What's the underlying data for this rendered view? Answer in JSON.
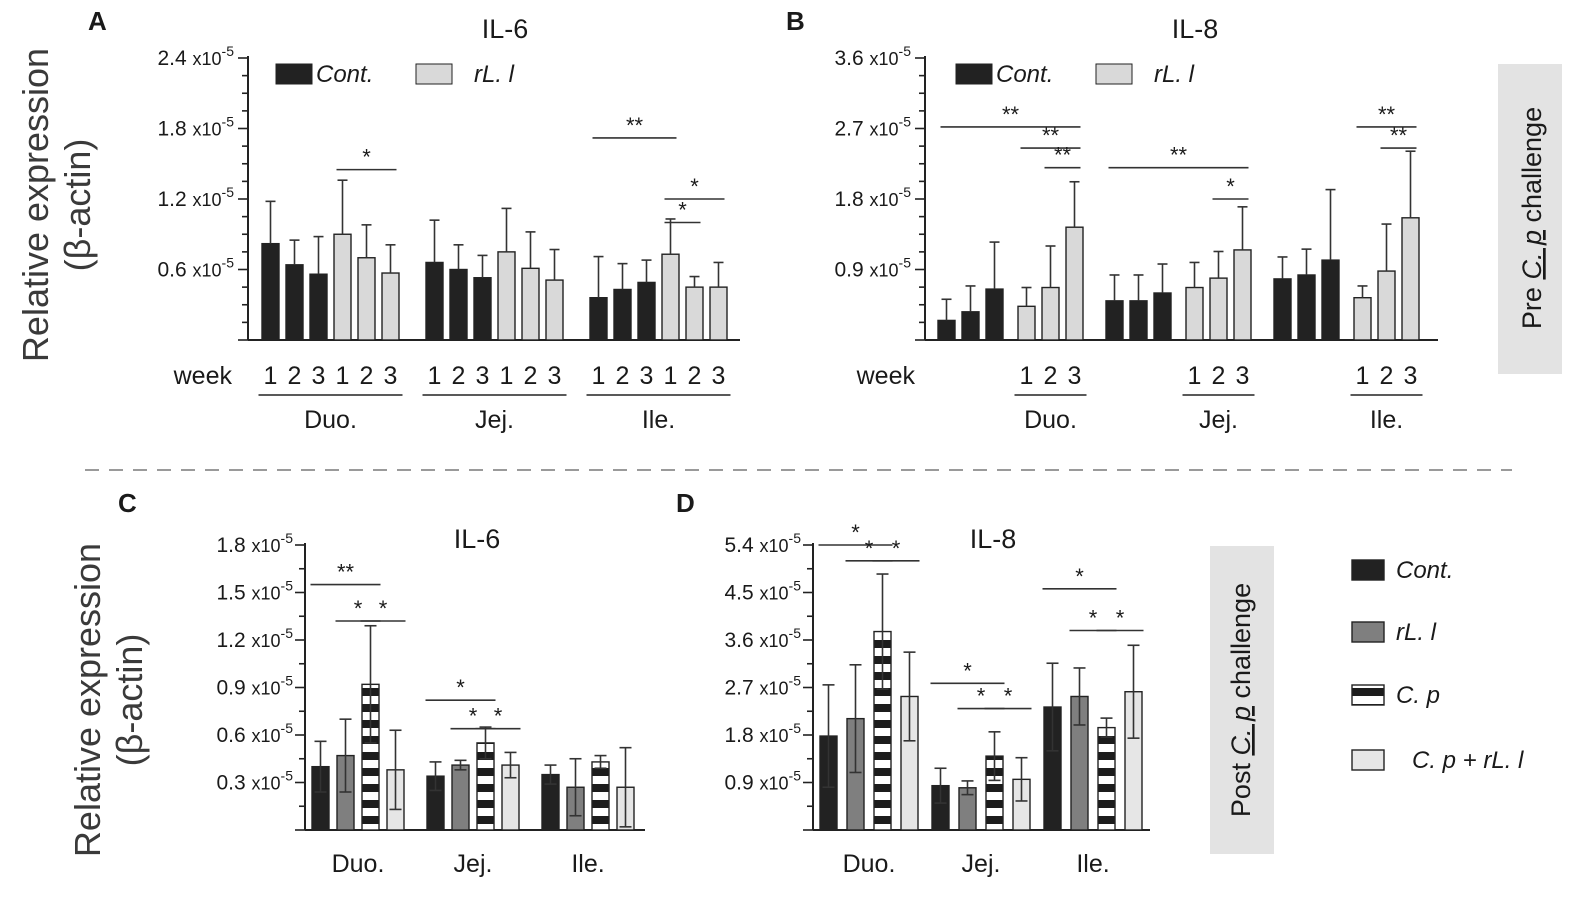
{
  "figure": {
    "ylabel_line1": "Relative expression",
    "ylabel_line2": "(β-actin)",
    "week_label": "week",
    "pre_label": [
      "Pre ",
      "C. p",
      " challenge"
    ],
    "post_label": [
      "Post ",
      "C. p",
      " challenge"
    ],
    "colors": {
      "cont": "#222222",
      "rLl": "#d9d9d9",
      "rLl_dark": "#7f7f7f",
      "cp_dark": "#1c1c1c",
      "cp_light": "#ffffff",
      "cprLl": "#e6e6e6",
      "divider": "#9a9a9a",
      "sidebox": "#e3e3e3"
    }
  },
  "chart_data": [
    {
      "panel": "A",
      "type": "bar",
      "title": "IL-6",
      "ylabel": "Relative expression (β-actin)",
      "ylim": [
        0,
        2.4
      ],
      "y_unit_exp": "-5",
      "yticks": [
        0.6,
        1.2,
        1.8,
        2.4
      ],
      "ytick_labels": [
        "0.6",
        "1.2",
        "1.8",
        "2.4"
      ],
      "legend": [
        "Cont.",
        "rL. l"
      ],
      "categories": [
        "Duo.",
        "Jej.",
        "Ile."
      ],
      "week_ticks": [
        "1",
        "2",
        "3",
        "1",
        "2",
        "3"
      ],
      "series": [
        {
          "name": "Cont.",
          "values": [
            [
              0.82,
              0.64,
              0.56
            ],
            [
              0.66,
              0.6,
              0.53
            ],
            [
              0.36,
              0.43,
              0.49
            ]
          ],
          "errors": [
            [
              0.36,
              0.21,
              0.32
            ],
            [
              0.36,
              0.21,
              0.19
            ],
            [
              0.35,
              0.22,
              0.19
            ]
          ]
        },
        {
          "name": "rL. l",
          "values": [
            [
              0.9,
              0.7,
              0.57
            ],
            [
              0.75,
              0.61,
              0.51
            ],
            [
              0.73,
              0.45,
              0.45
            ]
          ],
          "errors": [
            [
              0.46,
              0.28,
              0.24
            ],
            [
              0.37,
              0.31,
              0.26
            ],
            [
              0.3,
              0.09,
              0.21
            ]
          ]
        }
      ],
      "significance": [
        {
          "label": "*",
          "from": [
            0,
            1,
            0
          ],
          "to": [
            0,
            1,
            2
          ],
          "level": 1.45
        },
        {
          "label": "**",
          "from": [
            2,
            0,
            0
          ],
          "to": [
            2,
            1,
            0
          ],
          "level": 1.72
        },
        {
          "label": "*",
          "from": [
            2,
            1,
            0
          ],
          "to": [
            2,
            1,
            2
          ],
          "level": 1.2
        },
        {
          "label": "*",
          "from": [
            2,
            1,
            0
          ],
          "to": [
            2,
            1,
            1
          ],
          "level": 1.0
        }
      ]
    },
    {
      "panel": "B",
      "type": "bar",
      "title": "IL-8",
      "ylabel": "Relative expression (β-actin)",
      "ylim": [
        0,
        3.6
      ],
      "y_unit_exp": "-5",
      "yticks": [
        0.9,
        1.8,
        2.7,
        3.6
      ],
      "ytick_labels": [
        "0.9",
        "1.8",
        "2.7",
        "3.6"
      ],
      "legend": [
        "Cont.",
        "rL. l"
      ],
      "categories": [
        "Duo.",
        "Jej.",
        "Ile."
      ],
      "week_ticks": [
        "1",
        "2",
        "3"
      ],
      "series": [
        {
          "name": "Cont.",
          "values": [
            [
              0.25,
              0.36,
              0.65
            ],
            [
              0.5,
              0.5,
              0.6
            ],
            [
              0.78,
              0.83,
              1.02
            ]
          ],
          "errors": [
            [
              0.27,
              0.33,
              0.6
            ],
            [
              0.33,
              0.33,
              0.37
            ],
            [
              0.28,
              0.33,
              0.9
            ]
          ]
        },
        {
          "name": "rL. l",
          "values": [
            [
              0.43,
              0.67,
              1.44
            ],
            [
              0.67,
              0.79,
              1.15
            ],
            [
              0.54,
              0.88,
              1.56
            ]
          ],
          "errors": [
            [
              0.24,
              0.53,
              0.58
            ],
            [
              0.32,
              0.34,
              0.55
            ],
            [
              0.15,
              0.6,
              0.85
            ]
          ]
        }
      ],
      "significance": [
        {
          "label": "**",
          "from": [
            0,
            0,
            0
          ],
          "to": [
            0,
            1,
            2
          ],
          "level": 2.72
        },
        {
          "label": "**",
          "from": [
            0,
            1,
            0
          ],
          "to": [
            0,
            1,
            2
          ],
          "level": 2.45
        },
        {
          "label": "**",
          "from": [
            0,
            1,
            1
          ],
          "to": [
            0,
            1,
            2
          ],
          "level": 2.2
        },
        {
          "label": "**",
          "from": [
            1,
            0,
            0
          ],
          "to": [
            1,
            1,
            2
          ],
          "level": 2.2
        },
        {
          "label": "*",
          "from": [
            1,
            1,
            1
          ],
          "to": [
            1,
            1,
            2
          ],
          "level": 1.8
        },
        {
          "label": "**",
          "from": [
            2,
            1,
            0
          ],
          "to": [
            2,
            1,
            2
          ],
          "level": 2.72
        },
        {
          "label": "**",
          "from": [
            2,
            1,
            1
          ],
          "to": [
            2,
            1,
            2
          ],
          "level": 2.45
        }
      ]
    },
    {
      "panel": "C",
      "type": "bar",
      "title": "IL-6",
      "ylabel": "Relative expression (β-actin)",
      "ylim": [
        0,
        1.8
      ],
      "y_unit_exp": "-5",
      "yticks": [
        0.3,
        0.6,
        0.9,
        1.2,
        1.5,
        1.8
      ],
      "ytick_labels": [
        "0.3",
        "0.6",
        "0.9",
        "1.2",
        "1.5",
        "1.8"
      ],
      "categories": [
        "Duo.",
        "Jej.",
        "Ile."
      ],
      "series": [
        {
          "name": "Cont.",
          "values": [
            0.4,
            0.34,
            0.35
          ],
          "errors": [
            0.16,
            0.09,
            0.06
          ]
        },
        {
          "name": "rL. l",
          "values": [
            0.47,
            0.41,
            0.27
          ],
          "errors": [
            0.23,
            0.03,
            0.18
          ]
        },
        {
          "name": "C. p",
          "values": [
            0.92,
            0.55,
            0.43
          ],
          "errors": [
            0.37,
            0.1,
            0.04
          ]
        },
        {
          "name": "C. p + rL. l",
          "values": [
            0.38,
            0.41,
            0.27
          ],
          "errors": [
            0.25,
            0.08,
            0.25
          ]
        }
      ],
      "significance": [
        {
          "label": "**",
          "from": [
            0,
            0
          ],
          "to": [
            0,
            2
          ],
          "level": 1.55
        },
        {
          "label": "*",
          "from": [
            0,
            1
          ],
          "to": [
            0,
            2
          ],
          "level": 1.32
        },
        {
          "label": "*",
          "from": [
            0,
            2
          ],
          "to": [
            0,
            3
          ],
          "level": 1.32
        },
        {
          "label": "*",
          "from": [
            1,
            0
          ],
          "to": [
            1,
            2
          ],
          "level": 0.82
        },
        {
          "label": "*",
          "from": [
            1,
            1
          ],
          "to": [
            1,
            2
          ],
          "level": 0.64
        },
        {
          "label": "*",
          "from": [
            1,
            2
          ],
          "to": [
            1,
            3
          ],
          "level": 0.64
        }
      ]
    },
    {
      "panel": "D",
      "type": "bar",
      "title": "IL-8",
      "ylabel": "Relative expression (β-actin)",
      "ylim": [
        0,
        5.4
      ],
      "y_unit_exp": "-5",
      "yticks": [
        0.9,
        1.8,
        2.7,
        3.6,
        4.5,
        5.4
      ],
      "ytick_labels": [
        "0.9",
        "1.8",
        "2.7",
        "3.6",
        "4.5",
        "5.4"
      ],
      "categories": [
        "Duo.",
        "Jej.",
        "Ile."
      ],
      "legend": [
        "Cont.",
        "rL. l",
        "C. p",
        "C. p + rL. l"
      ],
      "series": [
        {
          "name": "Cont.",
          "values": [
            1.78,
            0.84,
            2.33
          ],
          "errors": [
            0.97,
            0.33,
            0.83
          ]
        },
        {
          "name": "rL. l",
          "values": [
            2.11,
            0.8,
            2.53
          ],
          "errors": [
            1.02,
            0.13,
            0.54
          ]
        },
        {
          "name": "C. p",
          "values": [
            3.76,
            1.4,
            1.94
          ],
          "errors": [
            1.09,
            0.46,
            0.18
          ]
        },
        {
          "name": "C. p + rL. l",
          "values": [
            2.53,
            0.96,
            2.62
          ],
          "errors": [
            0.84,
            0.41,
            0.88
          ]
        }
      ],
      "significance": [
        {
          "label": "*",
          "from": [
            0,
            0
          ],
          "to": [
            0,
            2
          ],
          "level": 5.4
        },
        {
          "label": "*",
          "from": [
            0,
            1
          ],
          "to": [
            0,
            2
          ],
          "level": 5.1
        },
        {
          "label": "*",
          "from": [
            0,
            2
          ],
          "to": [
            0,
            3
          ],
          "level": 5.1
        },
        {
          "label": "*",
          "from": [
            1,
            0
          ],
          "to": [
            1,
            2
          ],
          "level": 2.78
        },
        {
          "label": "*",
          "from": [
            1,
            1
          ],
          "to": [
            1,
            2
          ],
          "level": 2.3
        },
        {
          "label": "*",
          "from": [
            1,
            2
          ],
          "to": [
            1,
            3
          ],
          "level": 2.3
        },
        {
          "label": "*",
          "from": [
            2,
            0
          ],
          "to": [
            2,
            2
          ],
          "level": 4.57
        },
        {
          "label": "*",
          "from": [
            2,
            1
          ],
          "to": [
            2,
            2
          ],
          "level": 3.78
        },
        {
          "label": "*",
          "from": [
            2,
            2
          ],
          "to": [
            2,
            3
          ],
          "level": 3.78
        }
      ]
    }
  ]
}
